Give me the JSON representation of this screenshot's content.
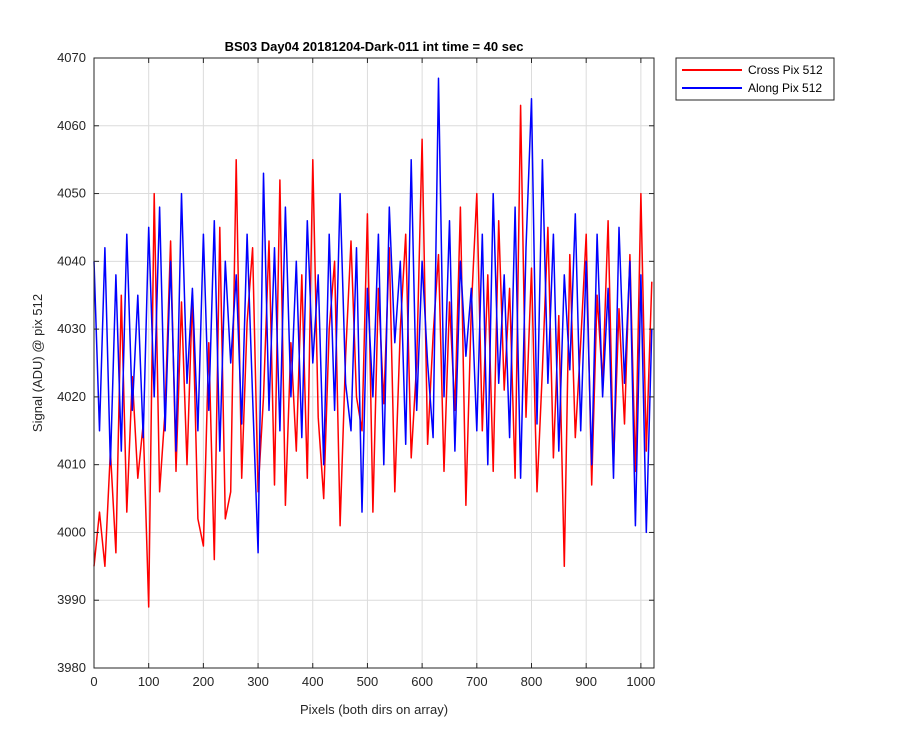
{
  "chart_data": {
    "type": "line",
    "title": "BS03 Day04 20181204-Dark-011 int time = 40 sec",
    "xlabel": "Pixels (both dirs on array)",
    "ylabel": "Signal (ADU) @ pix 512",
    "xlim": [
      0,
      1024
    ],
    "ylim": [
      3980,
      4070
    ],
    "xticks": [
      0,
      100,
      200,
      300,
      400,
      500,
      600,
      700,
      800,
      900,
      1000
    ],
    "yticks": [
      3980,
      3990,
      4000,
      4010,
      4020,
      4030,
      4040,
      4050,
      4060,
      4070
    ],
    "grid": true,
    "legend_position": "outside-top-right",
    "series": [
      {
        "name": "Cross Pix 512",
        "color": "#ff0000",
        "x": [
          0,
          10,
          20,
          30,
          40,
          50,
          60,
          70,
          80,
          90,
          100,
          110,
          120,
          130,
          140,
          150,
          160,
          170,
          180,
          190,
          200,
          210,
          220,
          230,
          240,
          250,
          260,
          270,
          280,
          290,
          300,
          310,
          320,
          330,
          340,
          350,
          360,
          370,
          380,
          390,
          400,
          410,
          420,
          430,
          440,
          450,
          460,
          470,
          480,
          490,
          500,
          510,
          520,
          530,
          540,
          550,
          560,
          570,
          580,
          590,
          600,
          610,
          620,
          630,
          640,
          650,
          660,
          670,
          680,
          690,
          700,
          710,
          720,
          730,
          740,
          750,
          760,
          770,
          780,
          790,
          800,
          810,
          820,
          830,
          840,
          850,
          860,
          870,
          880,
          890,
          900,
          910,
          920,
          930,
          940,
          950,
          960,
          970,
          980,
          990,
          1000,
          1010,
          1020
        ],
        "y": [
          3995,
          4003,
          3995,
          4012,
          3997,
          4035,
          4003,
          4023,
          4008,
          4016,
          3989,
          4050,
          4006,
          4018,
          4043,
          4009,
          4034,
          4010,
          4035,
          4002,
          3998,
          4028,
          3996,
          4045,
          4002,
          4006,
          4055,
          4008,
          4031,
          4042,
          4006,
          4020,
          4043,
          4007,
          4052,
          4004,
          4028,
          4012,
          4038,
          4008,
          4055,
          4017,
          4005,
          4030,
          4040,
          4001,
          4026,
          4043,
          4020,
          4015,
          4047,
          4003,
          4036,
          4019,
          4042,
          4006,
          4030,
          4044,
          4011,
          4025,
          4058,
          4013,
          4029,
          4041,
          4009,
          4034,
          4018,
          4048,
          4004,
          4033,
          4050,
          4015,
          4038,
          4009,
          4046,
          4021,
          4036,
          4008,
          4063,
          4017,
          4039,
          4006,
          4024,
          4045,
          4011,
          4032,
          3995,
          4041,
          4014,
          4028,
          4044,
          4007,
          4035,
          4022,
          4046,
          4010,
          4033,
          4016,
          4041,
          4009,
          4050,
          4012,
          4037
        ]
      },
      {
        "name": "Along Pix 512",
        "color": "#0000ff",
        "x": [
          0,
          10,
          20,
          30,
          40,
          50,
          60,
          70,
          80,
          90,
          100,
          110,
          120,
          130,
          140,
          150,
          160,
          170,
          180,
          190,
          200,
          210,
          220,
          230,
          240,
          250,
          260,
          270,
          280,
          290,
          300,
          310,
          320,
          330,
          340,
          350,
          360,
          370,
          380,
          390,
          400,
          410,
          420,
          430,
          440,
          450,
          460,
          470,
          480,
          490,
          500,
          510,
          520,
          530,
          540,
          550,
          560,
          570,
          580,
          590,
          600,
          610,
          620,
          630,
          640,
          650,
          660,
          670,
          680,
          690,
          700,
          710,
          720,
          730,
          740,
          750,
          760,
          770,
          780,
          790,
          800,
          810,
          820,
          830,
          840,
          850,
          860,
          870,
          880,
          890,
          900,
          910,
          920,
          930,
          940,
          950,
          960,
          970,
          980,
          990,
          1000,
          1010,
          1020
        ],
        "y": [
          4040,
          4015,
          4042,
          4010,
          4038,
          4012,
          4044,
          4018,
          4035,
          4014,
          4045,
          4020,
          4048,
          4015,
          4040,
          4012,
          4050,
          4022,
          4036,
          4015,
          4044,
          4018,
          4046,
          4012,
          4040,
          4025,
          4038,
          4016,
          4044,
          4020,
          3997,
          4053,
          4018,
          4042,
          4015,
          4048,
          4020,
          4040,
          4014,
          4046,
          4025,
          4038,
          4010,
          4044,
          4018,
          4050,
          4022,
          4015,
          4042,
          4003,
          4036,
          4020,
          4044,
          4010,
          4048,
          4028,
          4040,
          4013,
          4055,
          4018,
          4040,
          4025,
          4014,
          4067,
          4020,
          4046,
          4012,
          4040,
          4026,
          4036,
          4015,
          4044,
          4010,
          4050,
          4022,
          4038,
          4014,
          4048,
          4008,
          4042,
          4064,
          4016,
          4055,
          4022,
          4044,
          4012,
          4038,
          4024,
          4047,
          4015,
          4040,
          4010,
          4044,
          4020,
          4036,
          4008,
          4045,
          4022,
          4040,
          4001,
          4038,
          4000,
          4030
        ]
      }
    ]
  }
}
